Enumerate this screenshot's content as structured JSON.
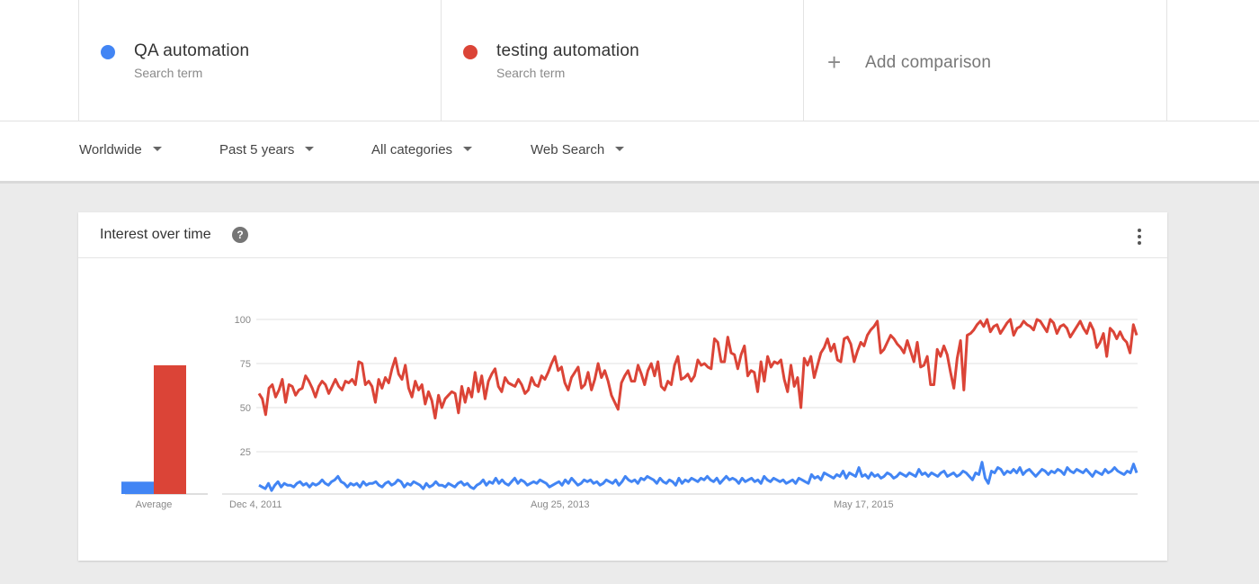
{
  "terms": [
    {
      "name": "QA automation",
      "sub": "Search term",
      "color": "#4285f4"
    },
    {
      "name": "testing automation",
      "sub": "Search term",
      "color": "#db4437"
    }
  ],
  "add_comparison": "Add comparison",
  "filters": {
    "region": "Worldwide",
    "period": "Past 5 years",
    "category": "All categories",
    "source": "Web Search"
  },
  "panel": {
    "title": "Interest over time",
    "help_icon": "?"
  },
  "chart_data": {
    "type": "line",
    "y_ticks": [
      "100",
      "75",
      "50",
      "25"
    ],
    "x_tick_labels": [
      "Dec 4, 2011",
      "Aug 25, 2013",
      "May 17, 2015"
    ],
    "ylim": [
      0,
      100
    ],
    "grid": true,
    "average_bars": {
      "label": "Average",
      "values": [
        7,
        73
      ],
      "colors": [
        "#4285f4",
        "#db4437"
      ]
    },
    "series": [
      {
        "name": "QA automation",
        "color": "#4285f4",
        "values": [
          5,
          4,
          3,
          6,
          2,
          5,
          7,
          4,
          6,
          5,
          5,
          4,
          6,
          7,
          5,
          6,
          4,
          6,
          5,
          6,
          8,
          6,
          5,
          7,
          8,
          10,
          7,
          6,
          4,
          6,
          5,
          6,
          4,
          7,
          5,
          6,
          6,
          7,
          5,
          4,
          6,
          7,
          5,
          6,
          8,
          7,
          4,
          6,
          5,
          7,
          6,
          5,
          3,
          6,
          4,
          5,
          7,
          5,
          5,
          4,
          6,
          5,
          4,
          6,
          7,
          5,
          6,
          4,
          3,
          5,
          6,
          8,
          5,
          7,
          6,
          9,
          6,
          8,
          6,
          5,
          7,
          9,
          6,
          8,
          7,
          5,
          6,
          7,
          6,
          8,
          7,
          6,
          4,
          5,
          6,
          7,
          5,
          8,
          6,
          9,
          7,
          5,
          6,
          8,
          7,
          8,
          6,
          7,
          5,
          6,
          8,
          7,
          6,
          8,
          5,
          7,
          10,
          8,
          7,
          8,
          6,
          9,
          8,
          10,
          9,
          8,
          6,
          9,
          7,
          6,
          8,
          7,
          5,
          9,
          6,
          8,
          7,
          9,
          8,
          7,
          9,
          8,
          10,
          8,
          7,
          9,
          6,
          8,
          10,
          8,
          9,
          8,
          6,
          9,
          7,
          8,
          9,
          7,
          8,
          6,
          10,
          8,
          7,
          9,
          8,
          7,
          8,
          6,
          7,
          8,
          6,
          9,
          8,
          7,
          6,
          11,
          9,
          10,
          8,
          12,
          11,
          10,
          9,
          11,
          10,
          13,
          9,
          12,
          11,
          10,
          15,
          10,
          11,
          9,
          12,
          10,
          11,
          9,
          10,
          12,
          11,
          9,
          10,
          12,
          11,
          10,
          12,
          11,
          10,
          14,
          11,
          12,
          10,
          12,
          11,
          10,
          12,
          13,
          10,
          11,
          12,
          10,
          11,
          13,
          12,
          10,
          8,
          12,
          11,
          18,
          9,
          6,
          13,
          12,
          15,
          14,
          11,
          13,
          12,
          14,
          12,
          15,
          11,
          13,
          14,
          12,
          10,
          12,
          14,
          13,
          11,
          13,
          12,
          14,
          13,
          11,
          15,
          13,
          12,
          14,
          13,
          12,
          14,
          12,
          10,
          13,
          12,
          11,
          14,
          12,
          13,
          15,
          13,
          12,
          11,
          13,
          12,
          17,
          12
        ]
      },
      {
        "name": "testing automation",
        "color": "#db4437",
        "values": [
          57,
          54,
          45,
          60,
          62,
          55,
          59,
          65,
          52,
          62,
          61,
          56,
          59,
          60,
          67,
          64,
          60,
          55,
          61,
          64,
          62,
          57,
          61,
          65,
          61,
          59,
          64,
          63,
          65,
          62,
          75,
          74,
          62,
          64,
          61,
          52,
          65,
          60,
          66,
          63,
          71,
          77,
          68,
          65,
          73,
          60,
          55,
          64,
          59,
          62,
          51,
          58,
          53,
          43,
          56,
          49,
          54,
          56,
          58,
          57,
          46,
          61,
          52,
          60,
          55,
          69,
          58,
          67,
          54,
          64,
          68,
          71,
          61,
          58,
          66,
          63,
          62,
          61,
          65,
          62,
          57,
          59,
          66,
          62,
          61,
          67,
          65,
          69,
          74,
          78,
          70,
          72,
          63,
          59,
          66,
          69,
          72,
          60,
          62,
          69,
          59,
          65,
          74,
          66,
          70,
          64,
          56,
          52,
          48,
          63,
          67,
          70,
          64,
          64,
          73,
          68,
          62,
          70,
          74,
          67,
          75,
          61,
          59,
          64,
          62,
          73,
          78,
          65,
          66,
          68,
          64,
          67,
          76,
          73,
          74,
          72,
          71,
          88,
          86,
          75,
          75,
          89,
          80,
          79,
          71,
          79,
          84,
          67,
          70,
          69,
          58,
          75,
          64,
          78,
          72,
          75,
          74,
          76,
          65,
          58,
          73,
          61,
          66,
          49,
          77,
          73,
          78,
          66,
          73,
          80,
          83,
          88,
          81,
          85,
          76,
          75,
          88,
          89,
          85,
          75,
          81,
          86,
          84,
          90,
          93,
          95,
          98,
          80,
          82,
          86,
          90,
          88,
          85,
          83,
          80,
          87,
          81,
          75,
          86,
          72,
          73,
          78,
          62,
          62,
          82,
          78,
          84,
          79,
          69,
          60,
          77,
          87,
          59,
          90,
          91,
          93,
          96,
          98,
          95,
          99,
          92,
          95,
          96,
          91,
          94,
          97,
          99,
          90,
          94,
          95,
          98,
          96,
          95,
          93,
          99,
          98,
          95,
          92,
          99,
          97,
          91,
          95,
          96,
          94,
          89,
          92,
          95,
          98,
          94,
          91,
          97,
          93,
          83,
          86,
          91,
          78,
          94,
          92,
          88,
          92,
          88,
          86,
          80,
          96,
          90
        ]
      }
    ]
  }
}
